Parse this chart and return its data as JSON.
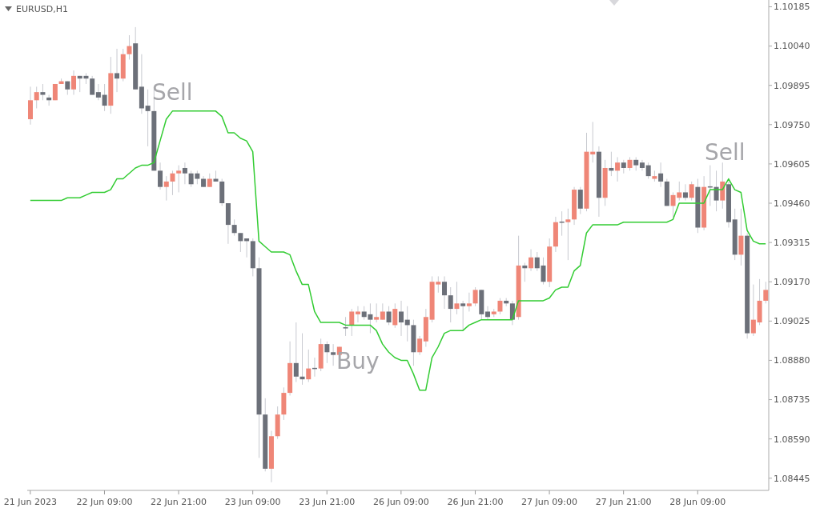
{
  "chart_data": {
    "type": "candlestick",
    "title": "EURUSD,H1",
    "categories": [
      "21 Jun 2023",
      null,
      null,
      null,
      null,
      null,
      null,
      null,
      null,
      null,
      null,
      null,
      "22 Jun 09:00",
      null,
      null,
      null,
      null,
      null,
      null,
      null,
      null,
      null,
      null,
      null,
      "22 Jun 21:00",
      null,
      null,
      null,
      null,
      null,
      null,
      null,
      null,
      null,
      null,
      null,
      "23 Jun 09:00",
      null,
      null,
      null,
      null,
      null,
      null,
      null,
      null,
      null,
      null,
      null,
      "23 Jun 21:00",
      null,
      null,
      null,
      null,
      null,
      null,
      null,
      null,
      null,
      null,
      null,
      "26 Jun 09:00",
      null,
      null,
      null,
      null,
      null,
      null,
      null,
      null,
      null,
      null,
      null,
      "26 Jun 21:00",
      null,
      null,
      null,
      null,
      null,
      null,
      null,
      null,
      null,
      null,
      null,
      "27 Jun 09:00",
      null,
      null,
      null,
      null,
      null,
      null,
      null,
      null,
      null,
      null,
      null,
      "27 Jun 21:00",
      null,
      null,
      null,
      null,
      null,
      null,
      null,
      null,
      null,
      null,
      null,
      "28 Jun 09:00",
      null,
      null,
      null,
      null,
      null,
      null,
      null,
      null,
      null,
      null,
      null
    ],
    "series": [
      {
        "type": "candlestick",
        "ohlc": [
          [
            1.0977,
            1.0989,
            1.0975,
            1.0984
          ],
          [
            1.0984,
            1.0989,
            1.0981,
            1.0987
          ],
          [
            1.0987,
            1.099,
            1.0984,
            1.0986
          ],
          [
            1.0985,
            1.0986,
            1.0982,
            1.0984
          ],
          [
            1.0984,
            1.099,
            1.0984,
            1.099
          ],
          [
            1.099,
            1.0992,
            1.099,
            1.0991
          ],
          [
            1.0991,
            1.0991,
            1.0986,
            1.0988
          ],
          [
            1.0988,
            1.0995,
            1.0986,
            1.0993
          ],
          [
            1.0993,
            1.0993,
            1.0987,
            1.0992
          ],
          [
            1.0993,
            1.0994,
            1.099,
            1.0992
          ],
          [
            1.0992,
            1.0993,
            1.0986,
            1.0986
          ],
          [
            1.0987,
            1.099,
            1.0984,
            1.0985
          ],
          [
            1.0986,
            1.099,
            1.098,
            1.0982
          ],
          [
            1.0982,
            1.1,
            1.0979,
            1.0994
          ],
          [
            1.0994,
            1.1003,
            1.0987,
            1.0992
          ],
          [
            1.0992,
            1.1003,
            1.0991,
            1.1001
          ],
          [
            1.1001,
            1.1008,
            1.0999,
            1.1004
          ],
          [
            1.1005,
            1.1011,
            1.0988,
            1.0988
          ],
          [
            1.0989,
            1.1001,
            1.0979,
            1.0981
          ],
          [
            1.0982,
            1.0988,
            1.0967,
            1.098
          ],
          [
            1.098,
            1.0989,
            1.0958,
            1.0958
          ],
          [
            1.0958,
            1.0961,
            1.0951,
            1.0952
          ],
          [
            1.0952,
            1.0956,
            1.0947,
            1.0954
          ],
          [
            1.0954,
            1.0958,
            1.0949,
            1.0957
          ],
          [
            1.0957,
            1.096,
            1.095,
            1.0958
          ],
          [
            1.0959,
            1.0961,
            1.0953,
            1.0957
          ],
          [
            1.0957,
            1.0958,
            1.0952,
            1.0953
          ],
          [
            1.0957,
            1.0958,
            1.0953,
            1.0955
          ],
          [
            1.0955,
            1.0956,
            1.0952,
            1.0952
          ],
          [
            1.0952,
            1.0957,
            1.0952,
            1.0955
          ],
          [
            1.0955,
            1.0958,
            1.0954,
            1.0954
          ],
          [
            1.0954,
            1.0955,
            1.0945,
            1.0946
          ],
          [
            1.0946,
            1.0946,
            1.0931,
            1.0938
          ],
          [
            1.0938,
            1.094,
            1.0934,
            1.0935
          ],
          [
            1.0935,
            1.0935,
            1.0928,
            1.0932
          ],
          [
            1.0933,
            1.0933,
            1.0926,
            1.0932
          ],
          [
            1.0932,
            1.0933,
            1.0919,
            1.0922
          ],
          [
            1.0922,
            1.0926,
            1.0852,
            1.0868
          ],
          [
            1.0868,
            1.0874,
            1.0847,
            1.0848
          ],
          [
            1.0848,
            1.0862,
            1.0843,
            1.086
          ],
          [
            1.086,
            1.0871,
            1.0859,
            1.0868
          ],
          [
            1.0868,
            1.0878,
            1.0866,
            1.0876
          ],
          [
            1.0876,
            1.0895,
            1.0875,
            1.0887
          ],
          [
            1.0887,
            1.0902,
            1.088,
            1.0882
          ],
          [
            1.0882,
            1.0898,
            1.0879,
            1.0881
          ],
          [
            1.0881,
            1.0892,
            1.088,
            1.0885
          ],
          [
            1.0885,
            1.0889,
            1.0882,
            1.0885
          ],
          [
            1.0885,
            1.0896,
            1.0884,
            1.0894
          ],
          [
            1.0894,
            1.0895,
            1.0887,
            1.0891
          ],
          [
            1.0891,
            1.0894,
            1.0886,
            1.089
          ],
          [
            1.089,
            1.0893,
            1.0889,
            1.0893
          ],
          [
            1.09,
            1.0904,
            1.0897,
            1.09
          ],
          [
            1.0901,
            1.0907,
            1.0897,
            1.0906
          ],
          [
            1.0905,
            1.0908,
            1.0902,
            1.0906
          ],
          [
            1.0906,
            1.0908,
            1.0903,
            1.0904
          ],
          [
            1.0905,
            1.0909,
            1.0898,
            1.0903
          ],
          [
            1.0903,
            1.0909,
            1.0902,
            1.0904
          ],
          [
            1.0903,
            1.0909,
            1.0903,
            1.0906
          ],
          [
            1.0906,
            1.0908,
            1.0901,
            1.0902
          ],
          [
            1.0901,
            1.0909,
            1.09,
            1.0907
          ],
          [
            1.0906,
            1.091,
            1.0897,
            1.0902
          ],
          [
            1.0903,
            1.0908,
            1.0895,
            1.0901
          ],
          [
            1.0901,
            1.0903,
            1.0886,
            1.0891
          ],
          [
            1.0891,
            1.0897,
            1.089,
            1.0896
          ],
          [
            1.0895,
            1.0907,
            1.0893,
            1.0904
          ],
          [
            1.0903,
            1.0919,
            1.0902,
            1.0917
          ],
          [
            1.0916,
            1.0919,
            1.0913,
            1.0917
          ],
          [
            1.0917,
            1.0919,
            1.0907,
            1.0912
          ],
          [
            1.0912,
            1.0915,
            1.0902,
            1.0907
          ],
          [
            1.0907,
            1.0917,
            1.0905,
            1.0909
          ],
          [
            1.0909,
            1.091,
            1.0899,
            1.0908
          ],
          [
            1.0908,
            1.0913,
            1.0906,
            1.0909
          ],
          [
            1.0909,
            1.0915,
            1.0908,
            1.0914
          ],
          [
            1.0914,
            1.0914,
            1.0903,
            1.0905
          ],
          [
            1.0906,
            1.0908,
            1.0903,
            1.0904
          ],
          [
            1.0905,
            1.0907,
            1.0904,
            1.0906
          ],
          [
            1.0906,
            1.0911,
            1.0905,
            1.091
          ],
          [
            1.091,
            1.0911,
            1.0908,
            1.0909
          ],
          [
            1.0909,
            1.091,
            1.0901,
            1.0903
          ],
          [
            1.0904,
            1.0934,
            1.0903,
            1.0923
          ],
          [
            1.0923,
            1.0924,
            1.0917,
            1.0922
          ],
          [
            1.0922,
            1.0929,
            1.0921,
            1.0926
          ],
          [
            1.0926,
            1.0928,
            1.0921,
            1.0922
          ],
          [
            1.0923,
            1.0926,
            1.0916,
            1.0917
          ],
          [
            1.0917,
            1.0933,
            1.0915,
            1.093
          ],
          [
            1.093,
            1.0941,
            1.0928,
            1.0939
          ],
          [
            1.0939,
            1.0943,
            1.0934,
            1.0939
          ],
          [
            1.0939,
            1.0944,
            1.0925,
            1.094
          ],
          [
            1.094,
            1.0952,
            1.0938,
            1.0951
          ],
          [
            1.0951,
            1.0952,
            1.0942,
            1.0944
          ],
          [
            1.0944,
            1.0972,
            1.0943,
            1.0965
          ],
          [
            1.0964,
            1.0976,
            1.0961,
            1.0965
          ],
          [
            1.0965,
            1.0967,
            1.0941,
            1.0948
          ],
          [
            1.0948,
            1.0962,
            1.0945,
            1.0959
          ],
          [
            1.0959,
            1.0965,
            1.0956,
            1.0958
          ],
          [
            1.0958,
            1.0963,
            1.0954,
            1.0961
          ],
          [
            1.0961,
            1.0962,
            1.0957,
            1.0959
          ],
          [
            1.0959,
            1.0963,
            1.0958,
            1.0962
          ],
          [
            1.0962,
            1.0963,
            1.0958,
            1.096
          ],
          [
            1.0961,
            1.0962,
            1.0958,
            1.0959
          ],
          [
            1.096,
            1.0961,
            1.0955,
            1.0956
          ],
          [
            1.0955,
            1.0958,
            1.0954,
            1.0956
          ],
          [
            1.0957,
            1.0961,
            1.0952,
            1.0954
          ],
          [
            1.0954,
            1.0955,
            1.0945,
            1.0945
          ],
          [
            1.0945,
            1.095,
            1.0941,
            1.0949
          ],
          [
            1.0948,
            1.0954,
            1.0947,
            1.095
          ],
          [
            1.095,
            1.0953,
            1.0947,
            1.0948
          ],
          [
            1.0948,
            1.0954,
            1.0947,
            1.0953
          ],
          [
            1.0952,
            1.0955,
            1.0935,
            1.0937
          ],
          [
            1.0937,
            1.0956,
            1.0936,
            1.0952
          ],
          [
            1.0952,
            1.096,
            1.0945,
            1.0952
          ],
          [
            1.0952,
            1.0958,
            1.0943,
            1.0947
          ],
          [
            1.0947,
            1.0961,
            1.0944,
            1.0954
          ],
          [
            1.0953,
            1.0954,
            1.0937,
            1.0939
          ],
          [
            1.094,
            1.0944,
            1.0925,
            1.0927
          ],
          [
            1.0927,
            1.0944,
            1.0923,
            1.0934
          ],
          [
            1.0934,
            1.0935,
            1.0896,
            1.0898
          ],
          [
            1.0898,
            1.0916,
            1.0897,
            1.0903
          ],
          [
            1.0902,
            1.0918,
            1.0901,
            1.091
          ],
          [
            1.091,
            1.0917,
            1.0909,
            1.0914
          ]
        ],
        "colors": [
          "#ef8677",
          "#ef8677",
          "#6c7079",
          "#6c7079",
          "#ef8677",
          "#ef8677",
          "#6c7079",
          "#ef8677",
          "#6c7079",
          "#6c7079",
          "#6c7079",
          "#6c7079",
          "#6c7079",
          "#ef8677",
          "#6c7079",
          "#ef8677",
          "#ef8677",
          "#6c7079",
          "#6c7079",
          "#6c7079",
          "#6c7079",
          "#6c7079",
          "#ef8677",
          "#ef8677",
          "#ef8677",
          "#6c7079",
          "#6c7079",
          "#6c7079",
          "#6c7079",
          "#ef8677",
          "#6c7079",
          "#6c7079",
          "#6c7079",
          "#6c7079",
          "#6c7079",
          "#6c7079",
          "#6c7079",
          "#6c7079",
          "#6c7079",
          "#ef8677",
          "#ef8677",
          "#ef8677",
          "#ef8677",
          "#6c7079",
          "#6c7079",
          "#ef8677",
          "#6c7079",
          "#ef8677",
          "#6c7079",
          "#6c7079",
          "#ef8677",
          "#6c7079",
          "#ef8677",
          "#ef8677",
          "#6c7079",
          "#6c7079",
          "#ef8677",
          "#ef8677",
          "#6c7079",
          "#ef8677",
          "#6c7079",
          "#6c7079",
          "#6c7079",
          "#ef8677",
          "#ef8677",
          "#ef8677",
          "#ef8677",
          "#6c7079",
          "#6c7079",
          "#ef8677",
          "#6c7079",
          "#ef8677",
          "#ef8677",
          "#6c7079",
          "#6c7079",
          "#ef8677",
          "#ef8677",
          "#6c7079",
          "#6c7079",
          "#ef8677",
          "#6c7079",
          "#ef8677",
          "#6c7079",
          "#6c7079",
          "#ef8677",
          "#ef8677",
          "#6c7079",
          "#ef8677",
          "#ef8677",
          "#6c7079",
          "#ef8677",
          "#ef8677",
          "#6c7079",
          "#ef8677",
          "#6c7079",
          "#ef8677",
          "#6c7079",
          "#ef8677",
          "#6c7079",
          "#6c7079",
          "#6c7079",
          "#ef8677",
          "#6c7079",
          "#6c7079",
          "#ef8677",
          "#ef8677",
          "#6c7079",
          "#ef8677",
          "#6c7079",
          "#ef8677",
          "#6c7079",
          "#6c7079",
          "#ef8677",
          "#6c7079",
          "#6c7079",
          "#ef8677",
          "#6c7079",
          "#ef8677",
          "#ef8677",
          "#ef8677"
        ]
      },
      {
        "type": "line",
        "color": "#33cc33",
        "values": [
          1.0947,
          1.0947,
          1.0947,
          1.0947,
          1.0947,
          1.0947,
          1.0948,
          1.0948,
          1.0948,
          1.0949,
          1.095,
          1.095,
          1.095,
          1.0951,
          1.0955,
          1.0955,
          1.0957,
          1.0959,
          1.096,
          1.096,
          1.0961,
          1.0969,
          1.0977,
          1.098,
          1.098,
          1.098,
          1.098,
          1.098,
          1.098,
          1.098,
          1.098,
          1.0978,
          1.0972,
          1.0972,
          1.097,
          1.0969,
          1.0965,
          1.0932,
          1.093,
          1.0928,
          1.0928,
          1.0928,
          1.0927,
          1.0921,
          1.0916,
          1.0916,
          1.0906,
          1.0902,
          1.0902,
          1.0902,
          1.0902,
          1.0901,
          1.0901,
          1.0901,
          1.0901,
          1.0901,
          1.0899,
          1.0894,
          1.0891,
          1.0889,
          1.0888,
          1.0888,
          1.0883,
          1.0877,
          1.0877,
          1.0889,
          1.0893,
          1.0898,
          1.0899,
          1.0899,
          1.0899,
          1.0901,
          1.0902,
          1.0903,
          1.0903,
          1.0903,
          1.0903,
          1.0903,
          1.0903,
          1.091,
          1.091,
          1.091,
          1.091,
          1.091,
          1.0911,
          1.0914,
          1.0915,
          1.0915,
          1.0921,
          1.0923,
          1.0935,
          1.0938,
          1.0938,
          1.0938,
          1.0938,
          1.0938,
          1.0939,
          1.0939,
          1.0939,
          1.0939,
          1.0939,
          1.0939,
          1.0939,
          1.0939,
          1.094,
          1.0946,
          1.0946,
          1.0946,
          1.0946,
          1.0946,
          1.0951,
          1.0951,
          1.0951,
          1.0955,
          1.0951,
          1.095,
          1.0936,
          1.0932,
          1.0931,
          1.0931
        ]
      }
    ],
    "ylim": [
      1.084,
      1.1021
    ],
    "yticks": [
      1.08445,
      {
        "value": 1.0859,
        "label": "1.08590"
      },
      1.08735,
      {
        "value": 1.0888,
        "label": "1.08880"
      },
      1.09025,
      {
        "value": 1.0917,
        "label": "1.09170"
      },
      1.09315,
      {
        "value": 1.0946,
        "label": "1.09460"
      },
      1.09605,
      {
        "value": 1.0975,
        "label": "1.09750"
      },
      1.09895,
      {
        "value": 1.1004,
        "label": "1.10040"
      },
      1.10185
    ],
    "annotations": [
      "Sell",
      "Buy",
      "Sell"
    ]
  }
}
